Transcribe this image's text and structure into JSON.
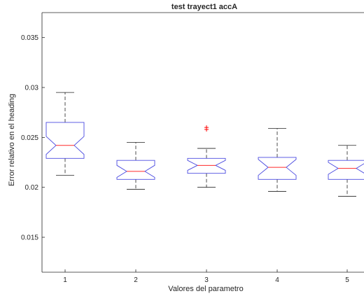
{
  "chart_data": {
    "type": "boxplot",
    "title": "test trayect1 accA",
    "xlabel": "Valores del parametro",
    "ylabel": "Error relativo en el heading",
    "ylim": [
      0.0115,
      0.0375
    ],
    "yticks": [
      "0.015",
      "0.02",
      "0.025",
      "0.03",
      "0.035"
    ],
    "categories": [
      "1",
      "2",
      "3",
      "4",
      "5"
    ],
    "boxes": [
      {
        "category": "1",
        "whisker_low": 0.0212,
        "q1": 0.0229,
        "median": 0.0242,
        "q3": 0.0265,
        "whisker_high": 0.0295,
        "notch_low": 0.0233,
        "notch_high": 0.0251,
        "outliers": []
      },
      {
        "category": "2",
        "whisker_low": 0.0198,
        "q1": 0.0208,
        "median": 0.0216,
        "q3": 0.0227,
        "whisker_high": 0.0245,
        "notch_low": 0.021,
        "notch_high": 0.0222,
        "outliers": []
      },
      {
        "category": "3",
        "whisker_low": 0.02,
        "q1": 0.0214,
        "median": 0.0222,
        "q3": 0.0229,
        "whisker_high": 0.0239,
        "notch_low": 0.0217,
        "notch_high": 0.0227,
        "outliers": [
          0.0258,
          0.026
        ]
      },
      {
        "category": "4",
        "whisker_low": 0.0196,
        "q1": 0.0208,
        "median": 0.022,
        "q3": 0.023,
        "whisker_high": 0.0259,
        "notch_low": 0.0212,
        "notch_high": 0.0228,
        "outliers": []
      },
      {
        "category": "5",
        "whisker_low": 0.0191,
        "q1": 0.0208,
        "median": 0.0219,
        "q3": 0.0227,
        "whisker_high": 0.0242,
        "notch_low": 0.0213,
        "notch_high": 0.0225,
        "outliers": []
      }
    ],
    "grid": false,
    "colors": {
      "box": "#4a4ae0",
      "median": "#ff2a2a",
      "whisker": "#222222",
      "outlier": "#ff0000",
      "axis": "#262626"
    }
  }
}
